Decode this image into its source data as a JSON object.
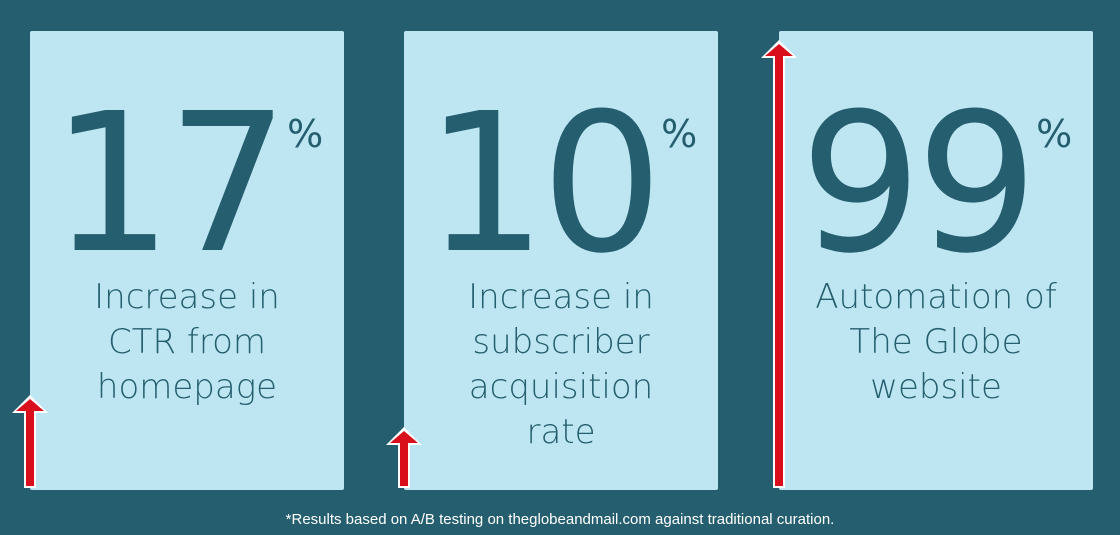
{
  "stats": [
    {
      "value": "17",
      "unit": "%",
      "label_lines": [
        "Increase in",
        "CTR from",
        "homepage"
      ]
    },
    {
      "value": "10",
      "unit": "%",
      "label_lines": [
        "Increase in",
        "subscriber",
        "acquisition",
        "rate"
      ]
    },
    {
      "value": "99",
      "unit": "%",
      "label_lines": [
        "Automation of",
        "The Globe",
        "website"
      ]
    }
  ],
  "footnote": "*Results based on A/B testing on theglobeandmail.com against traditional curation.",
  "colors": {
    "background": "#255e6e",
    "card": "#bee6f2",
    "text": "#255e6e",
    "arrow": "#d9101c"
  },
  "icons": [
    "up-arrow-icon"
  ]
}
